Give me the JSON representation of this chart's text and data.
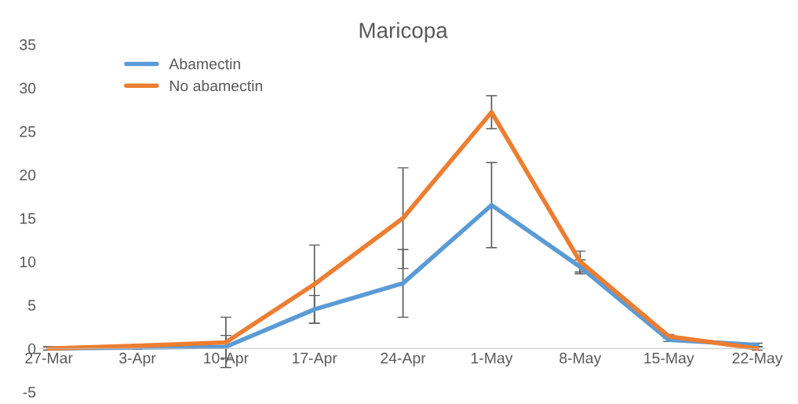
{
  "chart_data": {
    "type": "line",
    "title": "Maricopa",
    "categories": [
      "27-Mar",
      "3-Apr",
      "10-Apr",
      "17-Apr",
      "24-Apr",
      "1-May",
      "8-May",
      "15-May",
      "22-May"
    ],
    "series": [
      {
        "name": "Abamectin",
        "color": "#5b9bd5",
        "values": [
          0,
          0.1,
          0.2,
          4.5,
          7.5,
          16.5,
          9.4,
          1.0,
          0.4
        ],
        "errors": [
          0.2,
          0.2,
          1.3,
          1.6,
          3.9,
          4.9,
          0.8,
          0.2,
          0.2
        ]
      },
      {
        "name": "No abamectin",
        "color": "#ed7d31",
        "values": [
          0,
          0.3,
          0.7,
          7.4,
          15.0,
          27.2,
          10.0,
          1.4,
          0
        ],
        "errors": [
          0.2,
          0.2,
          2.9,
          4.5,
          5.8,
          1.9,
          1.2,
          0.2,
          0.2
        ]
      }
    ],
    "ylim": [
      -5,
      35
    ],
    "yticks": [
      -5,
      0,
      5,
      10,
      15,
      20,
      25,
      30,
      35
    ],
    "grid": false,
    "legend": "top left",
    "marker": "none",
    "line_style": "solid"
  }
}
